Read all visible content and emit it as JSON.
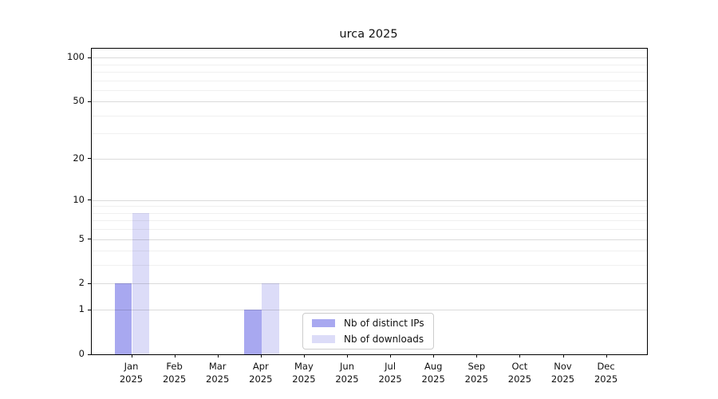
{
  "chart_data": {
    "type": "bar",
    "title": "urca 2025",
    "categories": [
      "Jan",
      "Feb",
      "Mar",
      "Apr",
      "May",
      "Jun",
      "Jul",
      "Aug",
      "Sep",
      "Oct",
      "Nov",
      "Dec"
    ],
    "x_year_suffix": "2025",
    "series": [
      {
        "name": "Nb of distinct IPs",
        "color": "#a8a8f0",
        "values": [
          2,
          0,
          0,
          1,
          0,
          0,
          0,
          0,
          0,
          0,
          0,
          0
        ]
      },
      {
        "name": "Nb of downloads",
        "color": "#dcdcf8",
        "values": [
          8,
          0,
          0,
          2,
          0,
          0,
          0,
          0,
          0,
          0,
          0,
          0
        ]
      }
    ],
    "y_scale": "log10(1+v)",
    "y_major_ticks": [
      0,
      1,
      2,
      5,
      10,
      20,
      50,
      100
    ],
    "y_minor_gridlines": [
      3,
      4,
      6,
      7,
      8,
      9,
      30,
      40,
      60,
      70,
      80,
      90
    ],
    "ylim": [
      0,
      115
    ],
    "grid": true,
    "legend_position": "lower center",
    "legend_border_color": "#cccccc"
  }
}
